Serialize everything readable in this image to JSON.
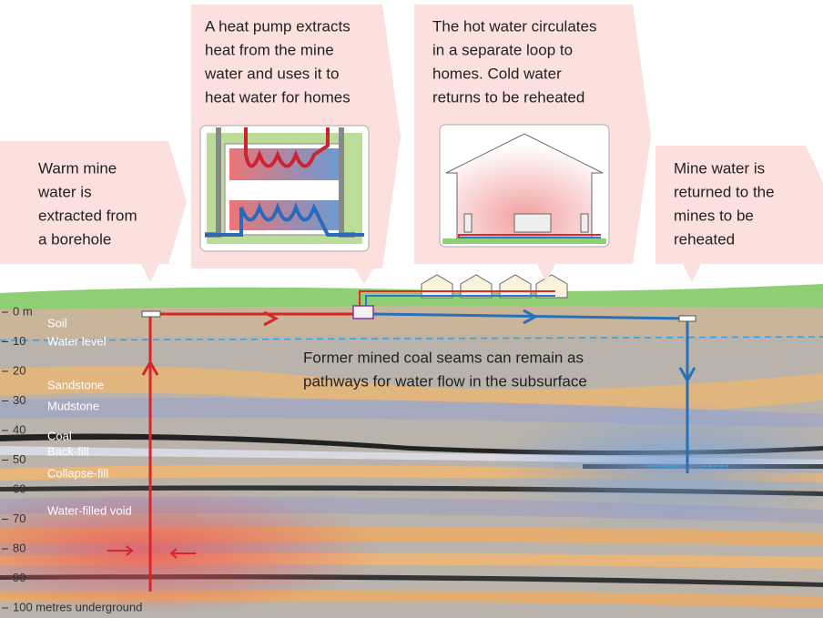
{
  "callouts": [
    {
      "lines": [
        "Warm mine",
        "water is",
        "extracted from",
        "a borehole"
      ]
    },
    {
      "lines": [
        "A heat pump extracts",
        "heat from the mine",
        "water and uses it to",
        "heat water for homes"
      ]
    },
    {
      "lines": [
        "The hot water circulates",
        "in a separate loop to",
        "homes. Cold water",
        "returns to be reheated"
      ]
    },
    {
      "lines": [
        "Mine water is",
        "returned to the",
        "mines to be",
        "reheated"
      ]
    }
  ],
  "depth_scale": [
    "0 m",
    "10",
    "20",
    "30",
    "40",
    "50",
    "60",
    "70",
    "80",
    "90",
    "100 metres underground"
  ],
  "layers": [
    "Soil",
    "Water level",
    "Sandstone",
    "Mudstone",
    "Coal",
    "Back-fill",
    "Collapse-fill",
    "Water-filled void"
  ],
  "annotation": [
    "Former mined coal seams can remain as",
    "pathways for water flow in the subsurface"
  ]
}
